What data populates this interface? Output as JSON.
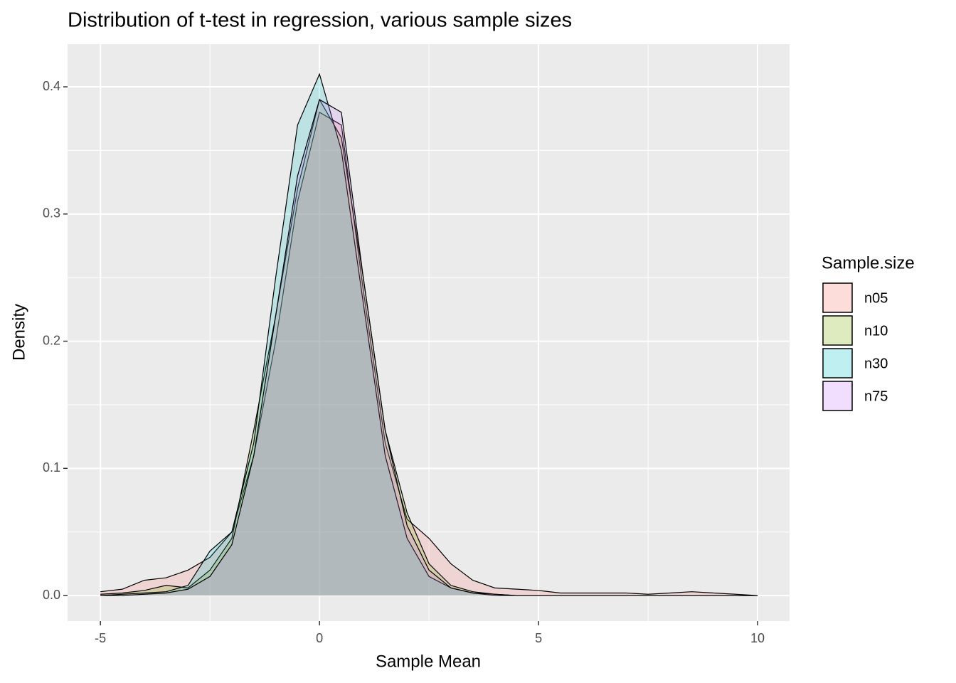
{
  "chart_data": {
    "type": "area",
    "title": "Distribution of t-test in regression, various sample sizes",
    "x_label": "Sample Mean",
    "y_label": "Density",
    "legend_title": "Sample.size",
    "x": [
      -5,
      -4.5,
      -4,
      -3.5,
      -3,
      -2.5,
      -2,
      -1.5,
      -1,
      -0.5,
      0,
      0.5,
      1,
      1.5,
      2,
      2.5,
      3,
      3.5,
      4,
      4.5,
      5,
      5.5,
      6,
      6.5,
      7,
      7.5,
      8,
      8.5,
      9,
      9.5,
      10
    ],
    "series": [
      {
        "name": "n05",
        "color": "#F8766D",
        "values": [
          0.003,
          0.005,
          0.012,
          0.014,
          0.02,
          0.03,
          0.05,
          0.11,
          0.2,
          0.31,
          0.38,
          0.37,
          0.24,
          0.12,
          0.06,
          0.045,
          0.025,
          0.012,
          0.006,
          0.005,
          0.004,
          0.002,
          0.002,
          0.002,
          0.002,
          0.001,
          0.002,
          0.003,
          0.002,
          0.001,
          0
        ]
      },
      {
        "name": "n10",
        "color": "#7CAE00",
        "values": [
          0.001,
          0.002,
          0.004,
          0.008,
          0.006,
          0.02,
          0.045,
          0.13,
          0.22,
          0.32,
          0.39,
          0.36,
          0.25,
          0.13,
          0.065,
          0.025,
          0.008,
          0.003,
          0.001,
          0,
          0,
          0,
          0,
          0,
          0,
          0,
          0,
          0,
          0,
          0,
          0
        ]
      },
      {
        "name": "n30",
        "color": "#00BFC4",
        "values": [
          0,
          0.001,
          0.002,
          0.003,
          0.008,
          0.035,
          0.05,
          0.12,
          0.25,
          0.37,
          0.41,
          0.35,
          0.23,
          0.11,
          0.045,
          0.015,
          0.006,
          0.002,
          0,
          0,
          0,
          0,
          0,
          0,
          0,
          0,
          0,
          0,
          0,
          0,
          0
        ]
      },
      {
        "name": "n75",
        "color": "#C77CFF",
        "values": [
          0,
          0,
          0.001,
          0.002,
          0.005,
          0.015,
          0.04,
          0.11,
          0.22,
          0.33,
          0.39,
          0.38,
          0.25,
          0.13,
          0.055,
          0.02,
          0.006,
          0.002,
          0.001,
          0,
          0,
          0,
          0,
          0,
          0,
          0,
          0,
          0,
          0,
          0,
          0
        ]
      }
    ],
    "xlim": [
      -5.75,
      10.73
    ],
    "ylim": [
      -0.0201,
      0.4336
    ],
    "xticks": [
      -5,
      0,
      5,
      10
    ],
    "yticks": [
      {
        "value": 0,
        "label": "0.0"
      },
      0.1,
      0.2,
      0.3,
      0.4
    ],
    "grid": true
  }
}
